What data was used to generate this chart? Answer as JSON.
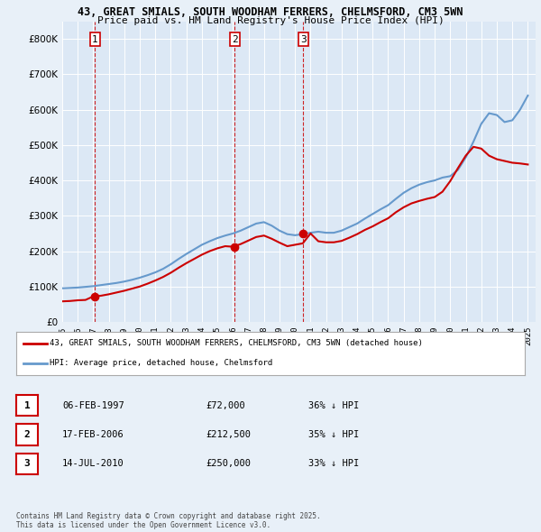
{
  "title_line1": "43, GREAT SMIALS, SOUTH WOODHAM FERRERS, CHELMSFORD, CM3 5WN",
  "title_line2": "Price paid vs. HM Land Registry's House Price Index (HPI)",
  "bg_color": "#e8f0f8",
  "plot_bg_color": "#dce8f5",
  "ylim": [
    0,
    850000
  ],
  "xlim": [
    1995,
    2025.5
  ],
  "sale_dates": [
    1997.1,
    2006.12,
    2010.54
  ],
  "sale_prices": [
    72000,
    212500,
    250000
  ],
  "sale_labels": [
    "1",
    "2",
    "3"
  ],
  "legend_property": "43, GREAT SMIALS, SOUTH WOODHAM FERRERS, CHELMSFORD, CM3 5WN (detached house)",
  "legend_hpi": "HPI: Average price, detached house, Chelmsford",
  "table_rows": [
    [
      "1",
      "06-FEB-1997",
      "£72,000",
      "36% ↓ HPI"
    ],
    [
      "2",
      "17-FEB-2006",
      "£212,500",
      "35% ↓ HPI"
    ],
    [
      "3",
      "14-JUL-2010",
      "£250,000",
      "33% ↓ HPI"
    ]
  ],
  "footer": "Contains HM Land Registry data © Crown copyright and database right 2025.\nThis data is licensed under the Open Government Licence v3.0.",
  "red_line_color": "#cc0000",
  "blue_line_color": "#6699cc",
  "vline_color": "#cc0000",
  "hpi_x": [
    1995,
    1995.5,
    1996,
    1996.5,
    1997,
    1997.5,
    1998,
    1998.5,
    1999,
    1999.5,
    2000,
    2000.5,
    2001,
    2001.5,
    2002,
    2002.5,
    2003,
    2003.5,
    2004,
    2004.5,
    2005,
    2005.5,
    2006,
    2006.5,
    2007,
    2007.5,
    2008,
    2008.5,
    2009,
    2009.5,
    2010,
    2010.5,
    2011,
    2011.5,
    2012,
    2012.5,
    2013,
    2013.5,
    2014,
    2014.5,
    2015,
    2015.5,
    2016,
    2016.5,
    2017,
    2017.5,
    2018,
    2018.5,
    2019,
    2019.5,
    2020,
    2020.5,
    2021,
    2021.5,
    2022,
    2022.5,
    2023,
    2023.5,
    2024,
    2024.5,
    2025
  ],
  "hpi_y": [
    95000,
    96000,
    97000,
    99000,
    101000,
    104000,
    107000,
    110000,
    114000,
    119000,
    125000,
    132000,
    140000,
    150000,
    163000,
    178000,
    192000,
    205000,
    218000,
    228000,
    237000,
    244000,
    250000,
    258000,
    268000,
    278000,
    282000,
    272000,
    258000,
    248000,
    245000,
    248000,
    252000,
    255000,
    252000,
    252000,
    258000,
    268000,
    278000,
    292000,
    305000,
    318000,
    330000,
    348000,
    365000,
    378000,
    388000,
    395000,
    400000,
    408000,
    412000,
    430000,
    465000,
    510000,
    560000,
    590000,
    585000,
    565000,
    570000,
    600000,
    640000
  ],
  "prop_x": [
    1995.0,
    1995.5,
    1996,
    1996.5,
    1997.0,
    1997.5,
    1998,
    1998.5,
    1999,
    1999.5,
    2000,
    2000.5,
    2001,
    2001.5,
    2002,
    2002.5,
    2003,
    2003.5,
    2004,
    2004.5,
    2005,
    2005.5,
    2006,
    2006.5,
    2007,
    2007.5,
    2008,
    2008.5,
    2009,
    2009.5,
    2010,
    2010.5,
    2011,
    2011.5,
    2012,
    2012.5,
    2013,
    2013.5,
    2014,
    2014.5,
    2015,
    2015.5,
    2016,
    2016.5,
    2017,
    2017.5,
    2018,
    2018.5,
    2019,
    2019.5,
    2020,
    2020.5,
    2021,
    2021.5,
    2022,
    2022.5,
    2023,
    2023.5,
    2024,
    2024.5,
    2025
  ],
  "prop_y": [
    58000,
    59000,
    61000,
    62000,
    72000,
    74000,
    78000,
    83000,
    88000,
    94000,
    100000,
    108000,
    117000,
    127000,
    139000,
    153000,
    166000,
    178000,
    190000,
    200000,
    208000,
    214000,
    212500,
    220000,
    230000,
    240000,
    244000,
    235000,
    224000,
    214000,
    218000,
    222000,
    250000,
    228000,
    225000,
    225000,
    229000,
    238000,
    248000,
    260000,
    270000,
    282000,
    293000,
    310000,
    324000,
    335000,
    342000,
    348000,
    353000,
    368000,
    398000,
    435000,
    470000,
    495000,
    490000,
    470000,
    460000,
    455000,
    450000,
    448000,
    445000
  ]
}
